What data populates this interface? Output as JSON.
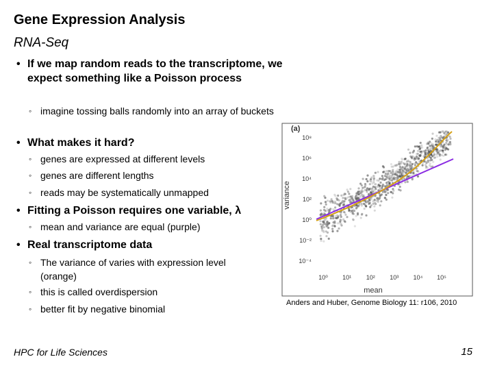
{
  "header": {
    "title": "Gene Expression Analysis",
    "subtitle": "RNA-Seq"
  },
  "bullets": [
    {
      "text": "If we map random reads to the transcriptome, we expect something like a Poisson process",
      "sub": [
        "imagine tossing balls randomly into an array of buckets"
      ]
    },
    {
      "text": "What makes it hard?",
      "sub": [
        "genes are expressed at different levels",
        "genes are different lengths",
        "reads may be systematically unmapped"
      ]
    },
    {
      "text": "Fitting a Poisson requires one variable, λ",
      "sub": [
        "mean and variance are equal (purple)"
      ]
    },
    {
      "text": "Real transcriptome data",
      "sub": [
        "The variance of varies with expression level (orange)",
        "this is called overdispersion",
        "better fit by negative binomial"
      ]
    }
  ],
  "figure": {
    "panel_label": "(a)",
    "y_label": "variance",
    "x_label": "mean",
    "yticks": [
      "10⁸",
      "10⁶",
      "10⁴",
      "10²",
      "10⁰",
      "10⁻²",
      "10⁻⁴"
    ],
    "xticks": [
      "10⁰",
      "10¹",
      "10²",
      "10³",
      "10⁴",
      "10⁵"
    ]
  },
  "caption": "Anders and Huber, Genome Biology 11: r106, 2010",
  "footer": {
    "left": "HPC for Life Sciences",
    "page_number": 15
  }
}
